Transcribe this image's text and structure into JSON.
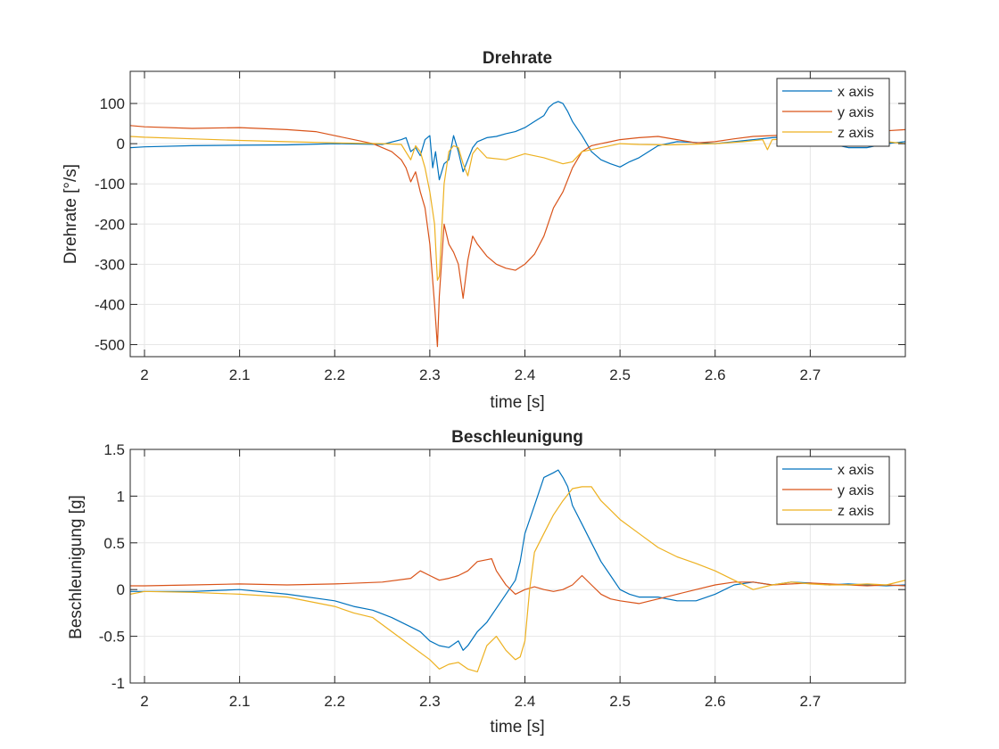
{
  "chart_data": [
    {
      "type": "line",
      "title": "Drehrate",
      "xlabel": "time [s]",
      "ylabel": "Drehrate [°/s]",
      "xlim": [
        1.985,
        2.8
      ],
      "ylim": [
        -530,
        180
      ],
      "xticks": [
        2,
        2.1,
        2.2,
        2.3,
        2.4,
        2.5,
        2.6,
        2.7
      ],
      "xtick_labels": [
        "2",
        "2.1",
        "2.2",
        "2.3",
        "2.4",
        "2.5",
        "2.6",
        "2.7"
      ],
      "yticks": [
        100,
        0,
        -100,
        -200,
        -300,
        -400,
        -500
      ],
      "ytick_labels": [
        "100",
        "0",
        "-100",
        "-200",
        "-300",
        "-400",
        "-500"
      ],
      "grid": true,
      "legend": "top-right",
      "series": [
        {
          "name": "x axis",
          "color": "#0072BD",
          "x": [
            1.985,
            2.0,
            2.05,
            2.1,
            2.15,
            2.2,
            2.25,
            2.27,
            2.275,
            2.28,
            2.285,
            2.29,
            2.295,
            2.3,
            2.303,
            2.306,
            2.31,
            2.315,
            2.32,
            2.325,
            2.33,
            2.335,
            2.34,
            2.345,
            2.35,
            2.36,
            2.37,
            2.38,
            2.39,
            2.4,
            2.41,
            2.42,
            2.425,
            2.43,
            2.435,
            2.44,
            2.445,
            2.45,
            2.46,
            2.47,
            2.48,
            2.49,
            2.5,
            2.51,
            2.52,
            2.53,
            2.54,
            2.55,
            2.56,
            2.58,
            2.6,
            2.62,
            2.64,
            2.66,
            2.68,
            2.7,
            2.72,
            2.74,
            2.76,
            2.78,
            2.8
          ],
          "y": [
            -10,
            -8,
            -5,
            -4,
            -3,
            0,
            -2,
            10,
            15,
            -20,
            -10,
            -30,
            10,
            20,
            -60,
            -20,
            -90,
            -50,
            -40,
            20,
            -20,
            -70,
            -40,
            -10,
            5,
            15,
            18,
            25,
            30,
            40,
            55,
            70,
            90,
            100,
            105,
            100,
            80,
            55,
            20,
            -20,
            -40,
            -50,
            -58,
            -45,
            -35,
            -20,
            -5,
            0,
            5,
            3,
            0,
            5,
            10,
            15,
            18,
            15,
            0,
            -10,
            -10,
            0,
            5
          ]
        },
        {
          "name": "y axis",
          "color": "#D95319",
          "x": [
            1.985,
            2.0,
            2.05,
            2.1,
            2.15,
            2.18,
            2.2,
            2.22,
            2.24,
            2.26,
            2.27,
            2.275,
            2.28,
            2.285,
            2.29,
            2.295,
            2.3,
            2.305,
            2.308,
            2.31,
            2.315,
            2.32,
            2.325,
            2.33,
            2.335,
            2.34,
            2.345,
            2.35,
            2.36,
            2.37,
            2.38,
            2.39,
            2.4,
            2.41,
            2.42,
            2.43,
            2.44,
            2.45,
            2.46,
            2.47,
            2.48,
            2.49,
            2.5,
            2.52,
            2.54,
            2.56,
            2.58,
            2.6,
            2.62,
            2.64,
            2.66,
            2.68,
            2.7,
            2.72,
            2.74,
            2.76,
            2.78,
            2.8
          ],
          "y": [
            45,
            42,
            38,
            40,
            35,
            30,
            20,
            10,
            0,
            -20,
            -40,
            -60,
            -95,
            -70,
            -120,
            -160,
            -250,
            -400,
            -505,
            -380,
            -200,
            -250,
            -270,
            -300,
            -385,
            -290,
            -230,
            -250,
            -280,
            -300,
            -310,
            -315,
            -300,
            -275,
            -230,
            -160,
            -120,
            -60,
            -20,
            -5,
            0,
            5,
            10,
            15,
            18,
            10,
            2,
            5,
            12,
            18,
            20,
            22,
            25,
            28,
            30,
            30,
            32,
            35
          ]
        },
        {
          "name": "z axis",
          "color": "#EDB120",
          "x": [
            1.985,
            2.0,
            2.05,
            2.1,
            2.15,
            2.2,
            2.25,
            2.27,
            2.28,
            2.285,
            2.29,
            2.295,
            2.3,
            2.305,
            2.308,
            2.31,
            2.315,
            2.32,
            2.325,
            2.33,
            2.335,
            2.34,
            2.345,
            2.35,
            2.36,
            2.38,
            2.4,
            2.42,
            2.44,
            2.45,
            2.46,
            2.48,
            2.5,
            2.52,
            2.55,
            2.6,
            2.63,
            2.65,
            2.655,
            2.66,
            2.68,
            2.7,
            2.72,
            2.74,
            2.76,
            2.78,
            2.8
          ],
          "y": [
            18,
            16,
            12,
            8,
            5,
            2,
            0,
            -2,
            -40,
            -5,
            -20,
            -60,
            -120,
            -200,
            -340,
            -330,
            -100,
            -20,
            -5,
            -10,
            -50,
            -80,
            -25,
            -10,
            -35,
            -40,
            -25,
            -35,
            -50,
            -45,
            -20,
            -10,
            0,
            -2,
            -3,
            0,
            5,
            10,
            -15,
            10,
            12,
            15,
            10,
            5,
            5,
            5,
            0
          ]
        }
      ]
    },
    {
      "type": "line",
      "title": "Beschleunigung",
      "xlabel": "time [s]",
      "ylabel": "Beschleunigung [g]",
      "xlim": [
        1.985,
        2.8
      ],
      "ylim": [
        -1,
        1.5
      ],
      "xticks": [
        2,
        2.1,
        2.2,
        2.3,
        2.4,
        2.5,
        2.6,
        2.7
      ],
      "xtick_labels": [
        "2",
        "2.1",
        "2.2",
        "2.3",
        "2.4",
        "2.5",
        "2.6",
        "2.7"
      ],
      "yticks": [
        1.5,
        1,
        0.5,
        0,
        -0.5,
        -1
      ],
      "ytick_labels": [
        "1.5",
        "1",
        "0.5",
        "0",
        "-0.5",
        "-1"
      ],
      "grid": true,
      "legend": "top-right",
      "series": [
        {
          "name": "x axis",
          "color": "#0072BD",
          "x": [
            1.985,
            2.0,
            2.05,
            2.1,
            2.15,
            2.2,
            2.22,
            2.24,
            2.26,
            2.28,
            2.29,
            2.3,
            2.31,
            2.32,
            2.33,
            2.335,
            2.34,
            2.35,
            2.36,
            2.37,
            2.38,
            2.39,
            2.395,
            2.4,
            2.41,
            2.415,
            2.42,
            2.43,
            2.435,
            2.44,
            2.445,
            2.45,
            2.46,
            2.47,
            2.48,
            2.49,
            2.5,
            2.51,
            2.52,
            2.54,
            2.56,
            2.58,
            2.6,
            2.62,
            2.64,
            2.66,
            2.68,
            2.7,
            2.72,
            2.74,
            2.76,
            2.78,
            2.8
          ],
          "y": [
            -0.02,
            -0.02,
            -0.02,
            0.0,
            -0.05,
            -0.12,
            -0.18,
            -0.22,
            -0.3,
            -0.4,
            -0.45,
            -0.55,
            -0.6,
            -0.62,
            -0.55,
            -0.65,
            -0.6,
            -0.45,
            -0.35,
            -0.2,
            -0.05,
            0.1,
            0.3,
            0.6,
            0.9,
            1.05,
            1.2,
            1.25,
            1.28,
            1.2,
            1.1,
            0.9,
            0.7,
            0.5,
            0.3,
            0.15,
            0.0,
            -0.05,
            -0.08,
            -0.08,
            -0.12,
            -0.12,
            -0.05,
            0.05,
            0.08,
            0.05,
            0.08,
            0.07,
            0.05,
            0.06,
            0.05,
            0.04,
            0.05
          ]
        },
        {
          "name": "y axis",
          "color": "#D95319",
          "x": [
            1.985,
            2.0,
            2.05,
            2.1,
            2.15,
            2.2,
            2.25,
            2.28,
            2.29,
            2.3,
            2.31,
            2.32,
            2.33,
            2.34,
            2.35,
            2.36,
            2.365,
            2.37,
            2.38,
            2.39,
            2.4,
            2.41,
            2.42,
            2.43,
            2.44,
            2.45,
            2.46,
            2.47,
            2.48,
            2.49,
            2.5,
            2.52,
            2.54,
            2.56,
            2.58,
            2.6,
            2.62,
            2.64,
            2.66,
            2.68,
            2.7,
            2.72,
            2.74,
            2.76,
            2.78,
            2.8
          ],
          "y": [
            0.04,
            0.04,
            0.05,
            0.06,
            0.05,
            0.06,
            0.08,
            0.12,
            0.2,
            0.15,
            0.1,
            0.12,
            0.15,
            0.2,
            0.3,
            0.32,
            0.33,
            0.2,
            0.05,
            -0.05,
            0.0,
            0.03,
            0.0,
            -0.02,
            0.0,
            0.05,
            0.15,
            0.05,
            -0.05,
            -0.1,
            -0.12,
            -0.15,
            -0.1,
            -0.05,
            0.0,
            0.05,
            0.08,
            0.08,
            0.05,
            0.06,
            0.07,
            0.06,
            0.05,
            0.04,
            0.05,
            0.04
          ]
        },
        {
          "name": "z axis",
          "color": "#EDB120",
          "x": [
            1.985,
            2.0,
            2.05,
            2.1,
            2.15,
            2.2,
            2.22,
            2.24,
            2.26,
            2.28,
            2.3,
            2.31,
            2.32,
            2.33,
            2.34,
            2.35,
            2.36,
            2.37,
            2.38,
            2.39,
            2.395,
            2.4,
            2.405,
            2.41,
            2.42,
            2.43,
            2.44,
            2.45,
            2.46,
            2.47,
            2.48,
            2.49,
            2.5,
            2.52,
            2.54,
            2.56,
            2.58,
            2.6,
            2.62,
            2.64,
            2.66,
            2.68,
            2.7,
            2.72,
            2.74,
            2.76,
            2.78,
            2.8
          ],
          "y": [
            -0.05,
            -0.02,
            -0.03,
            -0.05,
            -0.08,
            -0.18,
            -0.25,
            -0.3,
            -0.45,
            -0.6,
            -0.75,
            -0.85,
            -0.8,
            -0.78,
            -0.85,
            -0.88,
            -0.6,
            -0.5,
            -0.65,
            -0.75,
            -0.72,
            -0.55,
            0.0,
            0.4,
            0.6,
            0.8,
            0.95,
            1.08,
            1.1,
            1.1,
            0.95,
            0.85,
            0.75,
            0.6,
            0.45,
            0.35,
            0.28,
            0.2,
            0.1,
            0.0,
            0.05,
            0.08,
            0.06,
            0.05,
            0.05,
            0.06,
            0.05,
            0.1
          ]
        }
      ]
    }
  ]
}
